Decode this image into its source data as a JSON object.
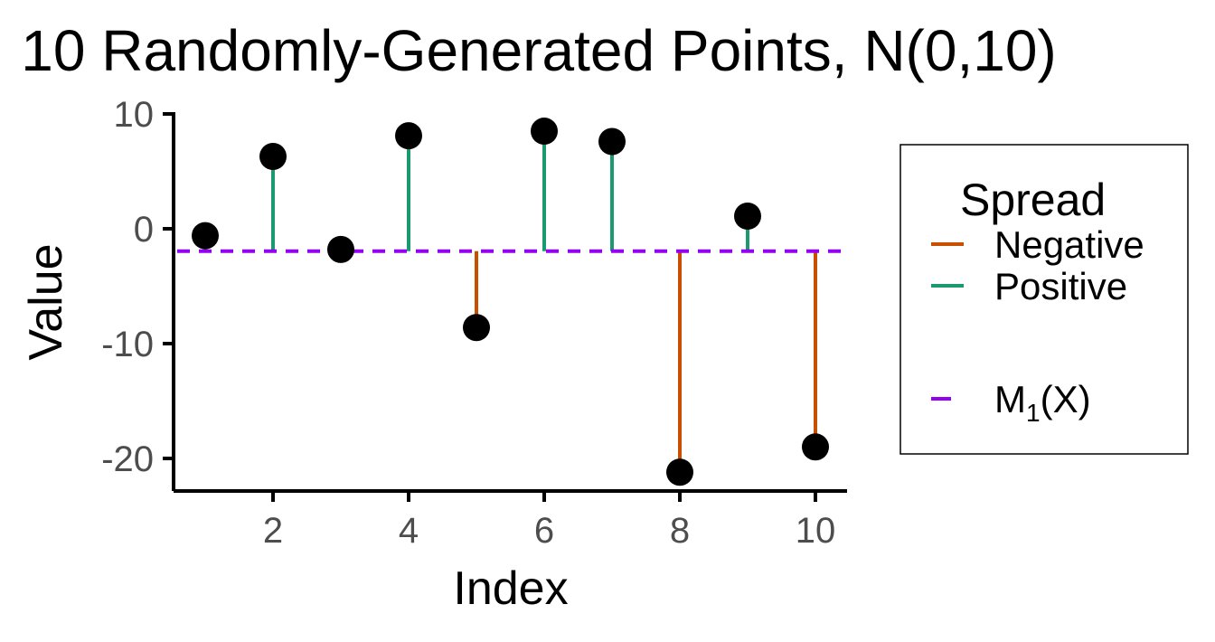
{
  "chart_data": {
    "type": "scatter",
    "title": "10 Randomly-Generated Points, N(0,10)",
    "xlabel": "Index",
    "ylabel": "Value",
    "x": [
      1,
      2,
      3,
      4,
      5,
      6,
      7,
      8,
      9,
      10
    ],
    "y": [
      -0.6,
      6.3,
      -1.8,
      8.1,
      -8.6,
      8.5,
      7.6,
      -21.2,
      1.1,
      -19.0
    ],
    "mean_line": {
      "value": -1.95,
      "color": "#9400f0",
      "style": "dashed",
      "label_main": "M",
      "label_sub": "1",
      "label_tail": "(X)"
    },
    "xlim": [
      0.5,
      10.5
    ],
    "ylim": [
      -23,
      10
    ],
    "xticks": [
      2,
      4,
      6,
      8,
      10
    ],
    "yticks": [
      10,
      0,
      -10,
      -20
    ],
    "xtick_labels": [
      "2",
      "4",
      "6",
      "8",
      "10"
    ],
    "ytick_labels": [
      "10",
      "0",
      "-10",
      "-20"
    ],
    "grid": false,
    "legend": {
      "title": "Spread",
      "placement": "right",
      "entries": [
        {
          "label": "Negative",
          "color": "#c84f00"
        },
        {
          "label": "Positive",
          "color": "#1b9970"
        }
      ]
    },
    "point_color": "#000000"
  }
}
